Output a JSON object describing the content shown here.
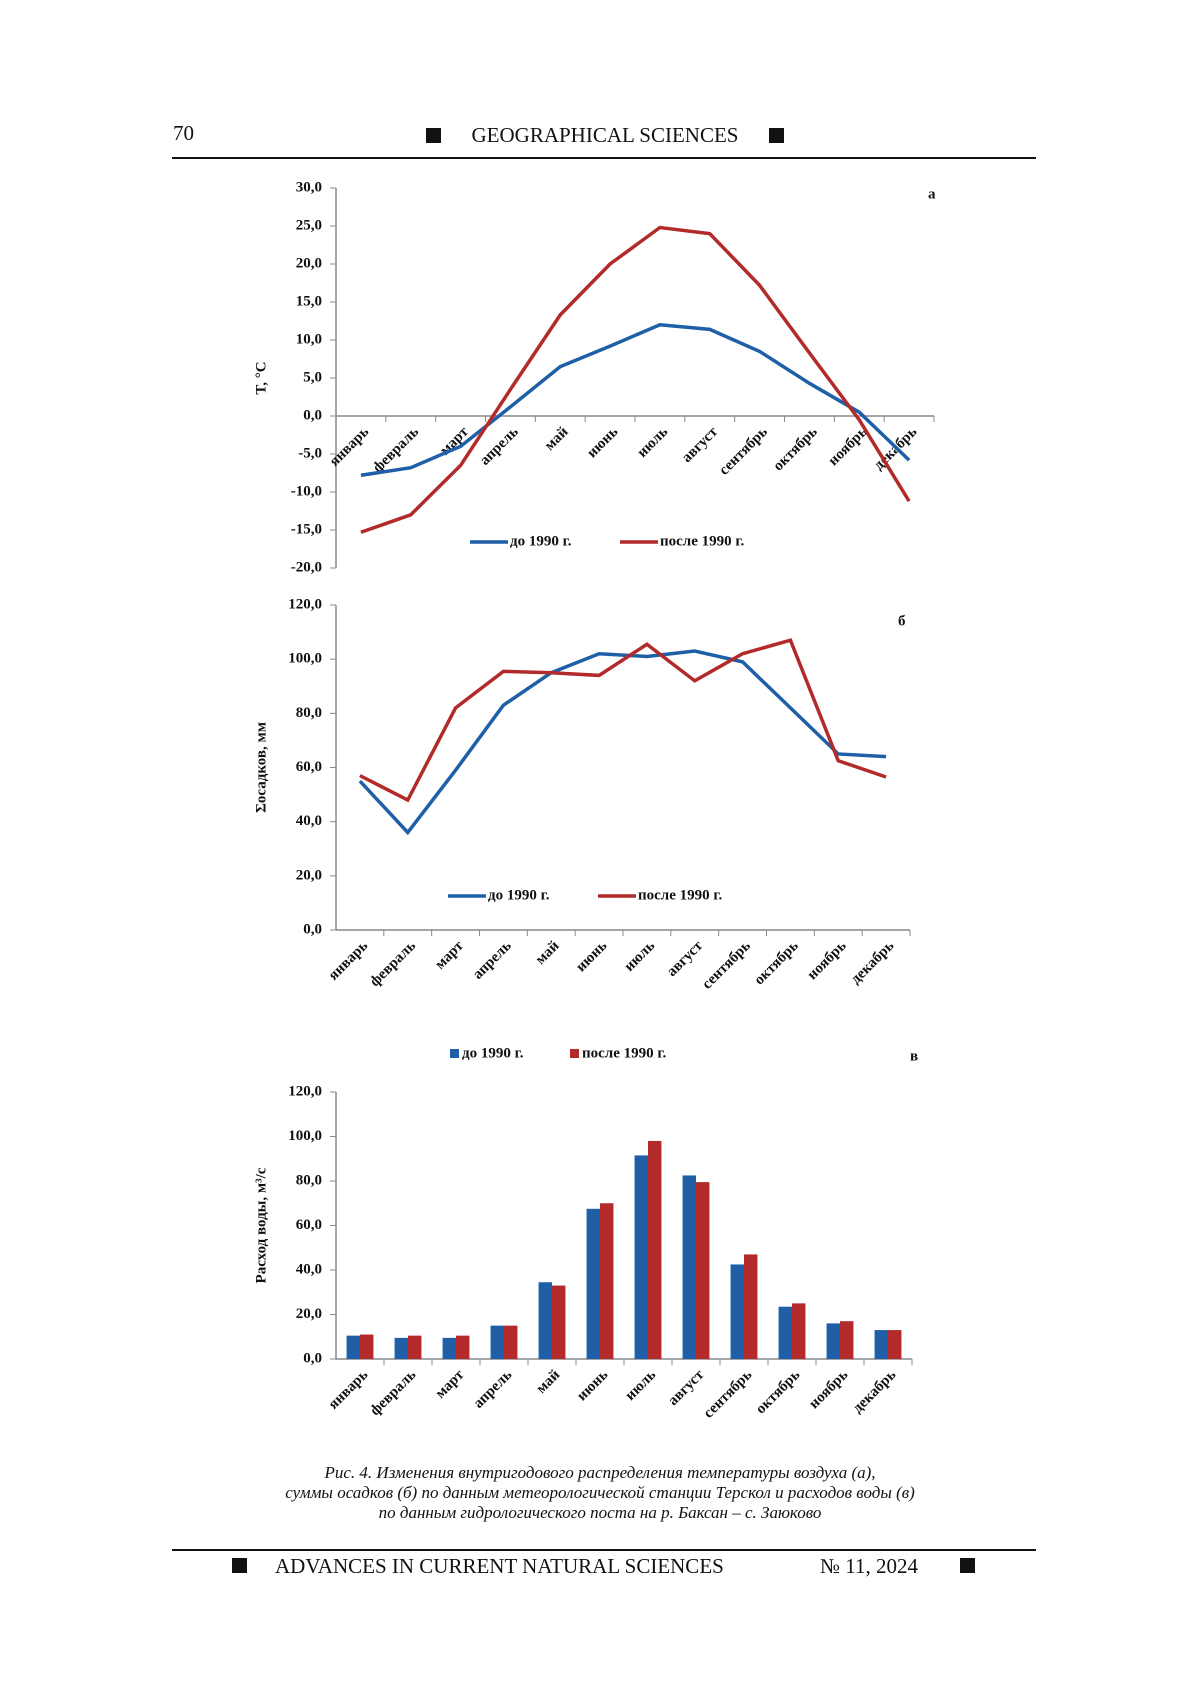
{
  "header": {
    "page_number": "70",
    "section": "GEOGRAPHICAL SCIENCES"
  },
  "chart_data": [
    {
      "type": "line",
      "annotation": "а",
      "y_label": "T, °C",
      "categories": [
        "январь",
        "февраль",
        "март",
        "апрель",
        "май",
        "июнь",
        "июль",
        "август",
        "сентябрь",
        "октябрь",
        "ноябрь",
        "декабрь"
      ],
      "series": [
        {
          "name": "до 1990 г.",
          "color": "#1f5fa8",
          "values": [
            -7.8,
            -6.8,
            -4.0,
            1.2,
            6.5,
            9.2,
            12.0,
            11.4,
            8.5,
            4.3,
            0.5,
            -5.8
          ]
        },
        {
          "name": "после 1990 г.",
          "color": "#b22a2a",
          "values": [
            -15.3,
            -13.0,
            -6.5,
            3.5,
            13.3,
            20.0,
            24.8,
            24.0,
            17.2,
            8.3,
            -0.5,
            -11.2
          ]
        }
      ],
      "ylim": [
        -20,
        30
      ],
      "yticks": [
        {
          "value": -20,
          "label": "-20,0"
        },
        {
          "value": -15,
          "label": "-15,0"
        },
        {
          "value": -10,
          "label": "-10,0"
        },
        {
          "value": -5,
          "label": "-5,0"
        },
        {
          "value": 0,
          "label": "0,0"
        },
        {
          "value": 5,
          "label": "5,0"
        },
        {
          "value": 10,
          "label": "10,0"
        },
        {
          "value": 15,
          "label": "15,0"
        },
        {
          "value": 20,
          "label": "20,0"
        },
        {
          "value": 25,
          "label": "25,0"
        },
        {
          "value": 30,
          "label": "30,0"
        }
      ]
    },
    {
      "type": "line",
      "annotation": "б",
      "y_label": "Σосадков, мм",
      "categories": [
        "январь",
        "февраль",
        "март",
        "апрель",
        "май",
        "июнь",
        "июль",
        "август",
        "сентябрь",
        "октябрь",
        "ноябрь",
        "декабрь"
      ],
      "series": [
        {
          "name": "до 1990 г.",
          "color": "#1f5fa8",
          "values": [
            55,
            36,
            59,
            83,
            95,
            102,
            101,
            103,
            99,
            82,
            65,
            64
          ]
        },
        {
          "name": "после 1990 г.",
          "color": "#b22a2a",
          "values": [
            57,
            48,
            82,
            95.5,
            95,
            94,
            105.5,
            92,
            102,
            107,
            62.5,
            56.5
          ]
        }
      ],
      "ylim": [
        0,
        120
      ],
      "yticks": [
        {
          "value": 0,
          "label": "0,0"
        },
        {
          "value": 20,
          "label": "20,0"
        },
        {
          "value": 40,
          "label": "40,0"
        },
        {
          "value": 60,
          "label": "60,0"
        },
        {
          "value": 80,
          "label": "80,0"
        },
        {
          "value": 100,
          "label": "100,0"
        },
        {
          "value": 120,
          "label": "120,0"
        }
      ]
    },
    {
      "type": "bar",
      "annotation": "в",
      "y_label": "Расход воды, м³/с",
      "categories": [
        "январь",
        "февраль",
        "март",
        "апрель",
        "май",
        "июнь",
        "июль",
        "август",
        "сентябрь",
        "октябрь",
        "ноябрь",
        "декабрь"
      ],
      "series": [
        {
          "name": "до 1990 г.",
          "color": "#1f5fa8",
          "values": [
            10.5,
            9.5,
            9.5,
            15,
            34.5,
            67.5,
            91.5,
            82.5,
            42.5,
            23.5,
            16,
            13
          ]
        },
        {
          "name": "после 1990 г.",
          "color": "#b22a2a",
          "values": [
            11,
            10.5,
            10.5,
            15,
            33,
            70,
            98,
            79.5,
            47,
            25,
            17,
            13
          ]
        }
      ],
      "ylim": [
        0,
        120
      ],
      "yticks": [
        {
          "value": 0,
          "label": "0,0"
        },
        {
          "value": 20,
          "label": "20,0"
        },
        {
          "value": 40,
          "label": "40,0"
        },
        {
          "value": 60,
          "label": "60,0"
        },
        {
          "value": 80,
          "label": "80,0"
        },
        {
          "value": 100,
          "label": "100,0"
        },
        {
          "value": 120,
          "label": "120,0"
        }
      ]
    }
  ],
  "caption": [
    "Рис. 4. Изменения внутригодового распределения температуры воздуха (а),",
    "суммы осадков (б) по данным метеорологической станции Терскол и расходов воды (в)",
    "по данным гидрологического поста на р. Баксан – с. Заюково"
  ],
  "footer": {
    "journal": "ADVANCES IN CURRENT NATURAL SCIENCES",
    "issue": "№ 11, 2024"
  }
}
